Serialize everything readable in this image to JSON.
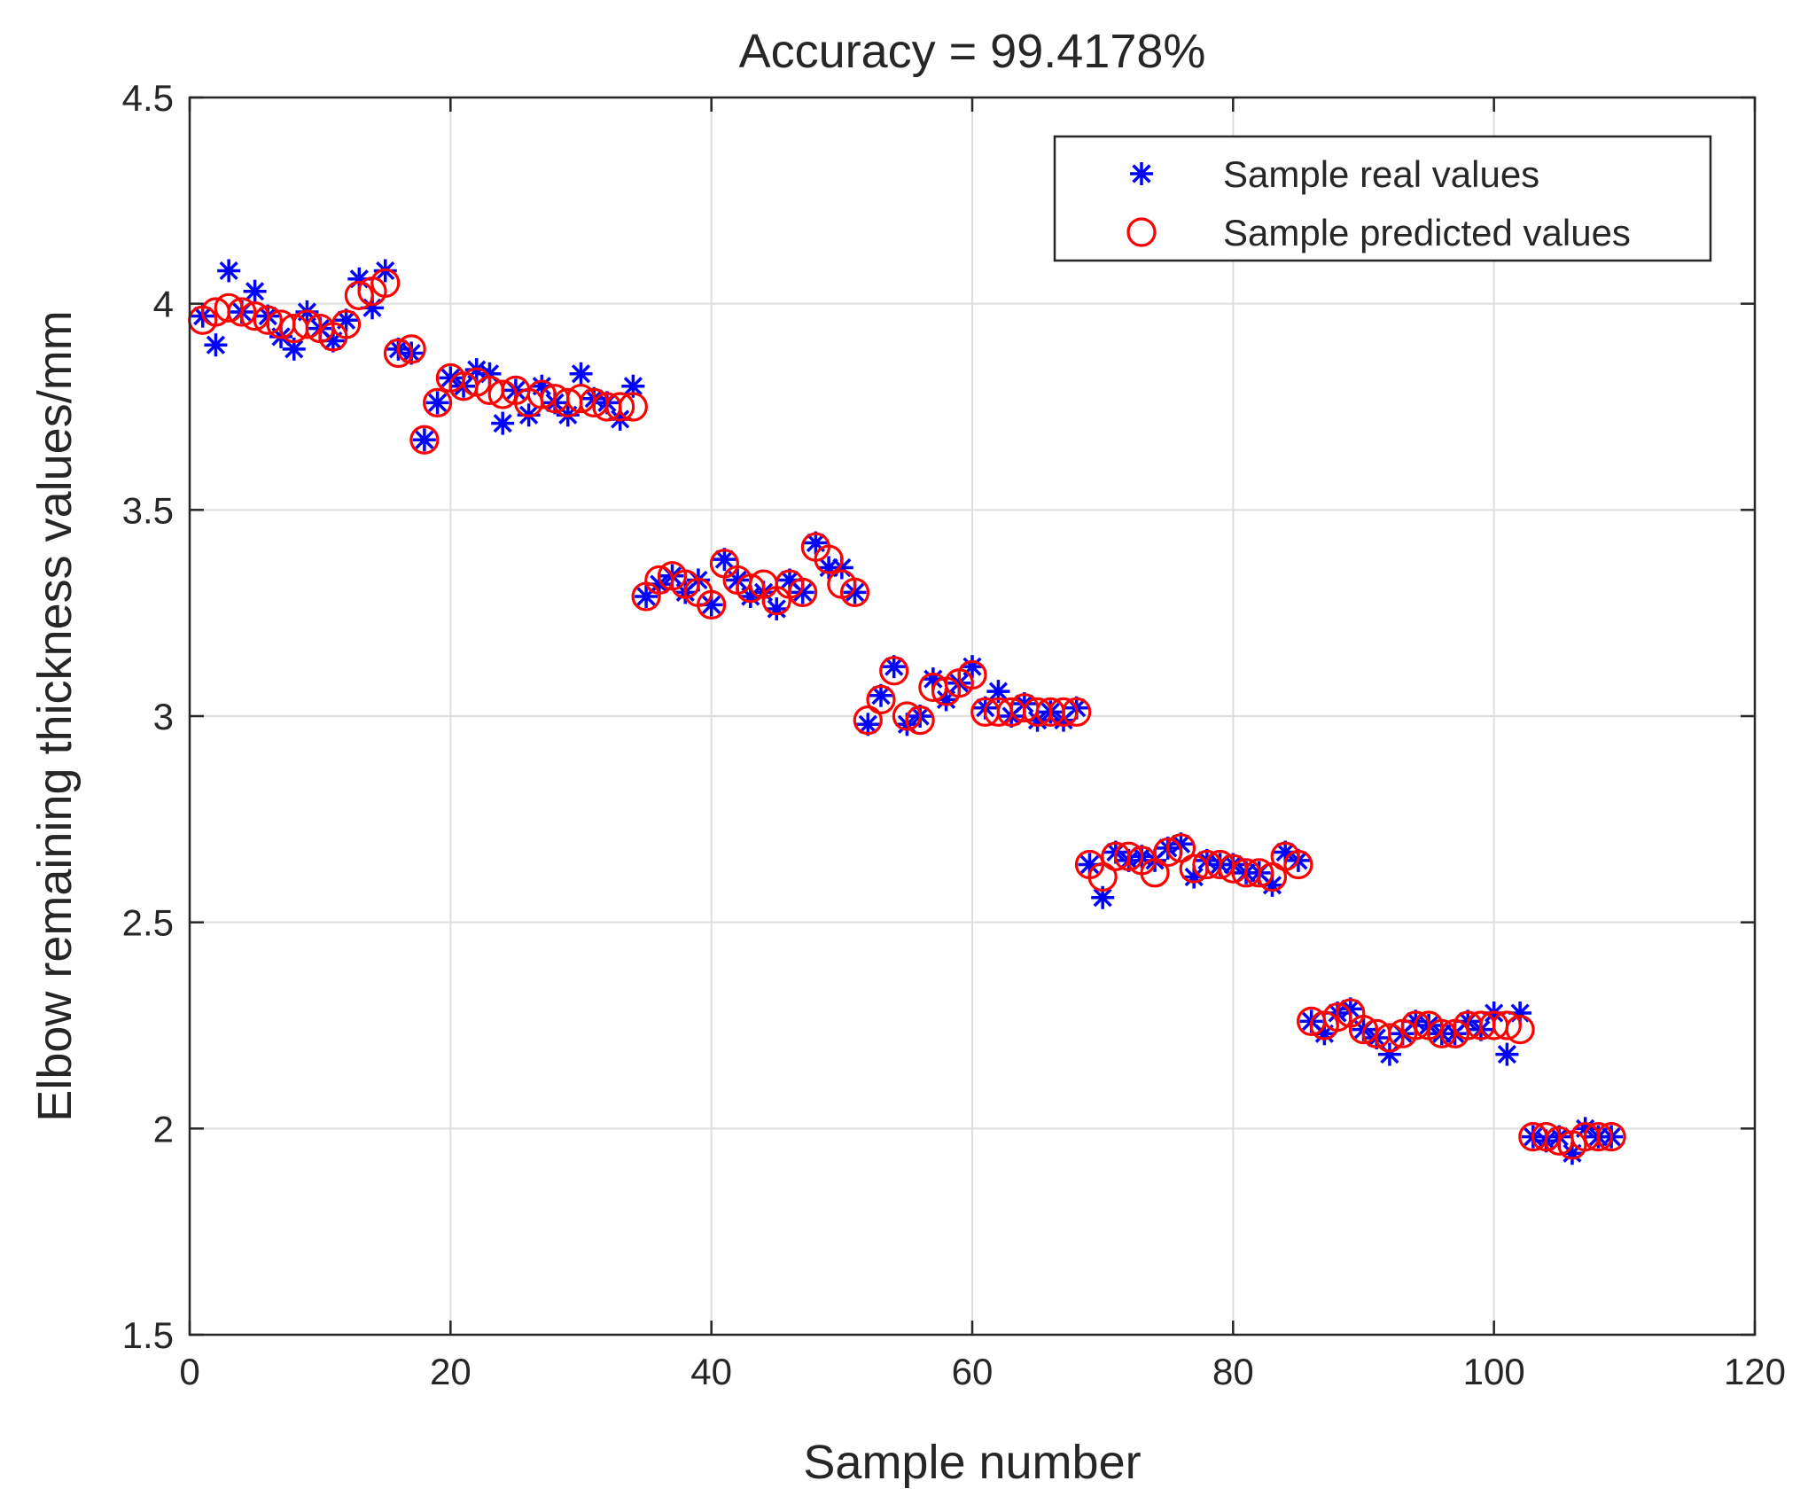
{
  "chart_data": {
    "type": "scatter",
    "title": "Accuracy = 99.4178%",
    "xlabel": "Sample number",
    "ylabel": "Elbow remaining thickness values/mm",
    "xlim": [
      0,
      120
    ],
    "ylim": [
      1.5,
      4.5
    ],
    "xticks": [
      "0",
      "20",
      "40",
      "60",
      "80",
      "100",
      "120"
    ],
    "yticks": [
      "1.5",
      "2",
      "2.5",
      "3",
      "3.5",
      "4",
      "4.5"
    ],
    "grid": true,
    "legend_position": "top-right",
    "series": [
      {
        "name": "Sample real values",
        "marker": "asterisk",
        "color": "#0000ff",
        "x": [
          1,
          2,
          3,
          4,
          5,
          6,
          7,
          8,
          9,
          10,
          11,
          12,
          13,
          14,
          15,
          16,
          17,
          18,
          19,
          20,
          21,
          22,
          23,
          24,
          25,
          26,
          27,
          28,
          29,
          30,
          31,
          32,
          33,
          34,
          35,
          36,
          37,
          38,
          39,
          40,
          41,
          42,
          43,
          44,
          45,
          46,
          47,
          48,
          49,
          50,
          51,
          52,
          53,
          54,
          55,
          56,
          57,
          58,
          59,
          60,
          61,
          62,
          63,
          64,
          65,
          66,
          67,
          68,
          69,
          70,
          71,
          72,
          73,
          74,
          75,
          76,
          77,
          78,
          79,
          80,
          81,
          82,
          83,
          84,
          85,
          86,
          87,
          88,
          89,
          90,
          91,
          92,
          93,
          94,
          95,
          96,
          97,
          98,
          99,
          100,
          101,
          102,
          103,
          104,
          105,
          106,
          107,
          108,
          109
        ],
        "y": [
          3.97,
          3.9,
          4.08,
          3.98,
          4.03,
          3.97,
          3.92,
          3.89,
          3.98,
          3.94,
          3.91,
          3.96,
          4.06,
          3.99,
          4.08,
          3.89,
          3.88,
          3.67,
          3.76,
          3.82,
          3.8,
          3.84,
          3.83,
          3.71,
          3.79,
          3.73,
          3.8,
          3.76,
          3.73,
          3.83,
          3.77,
          3.76,
          3.72,
          3.8,
          3.29,
          3.32,
          3.34,
          3.3,
          3.33,
          3.27,
          3.38,
          3.33,
          3.29,
          3.3,
          3.26,
          3.33,
          3.3,
          3.42,
          3.36,
          3.36,
          3.3,
          2.98,
          3.05,
          3.12,
          2.98,
          3.0,
          3.09,
          3.04,
          3.08,
          3.12,
          3.02,
          3.06,
          3.0,
          3.03,
          2.99,
          3.01,
          2.99,
          3.02,
          2.64,
          2.56,
          2.67,
          2.65,
          2.66,
          2.65,
          2.68,
          2.69,
          2.61,
          2.65,
          2.64,
          2.64,
          2.62,
          2.62,
          2.59,
          2.67,
          2.65,
          2.26,
          2.23,
          2.28,
          2.29,
          2.24,
          2.22,
          2.18,
          2.23,
          2.26,
          2.25,
          2.23,
          2.23,
          2.26,
          2.24,
          2.28,
          2.18,
          2.28,
          1.98,
          1.97,
          1.98,
          1.94,
          2.0,
          1.98,
          1.98
        ]
      },
      {
        "name": "Sample predicted values",
        "marker": "circle",
        "color": "#ff0000",
        "x": [
          1,
          2,
          3,
          4,
          5,
          6,
          7,
          8,
          9,
          10,
          11,
          12,
          13,
          14,
          15,
          16,
          17,
          18,
          19,
          20,
          21,
          22,
          23,
          24,
          25,
          26,
          27,
          28,
          29,
          30,
          31,
          32,
          33,
          34,
          35,
          36,
          37,
          38,
          39,
          40,
          41,
          42,
          43,
          44,
          45,
          46,
          47,
          48,
          49,
          50,
          51,
          52,
          53,
          54,
          55,
          56,
          57,
          58,
          59,
          60,
          61,
          62,
          63,
          64,
          65,
          66,
          67,
          68,
          69,
          70,
          71,
          72,
          73,
          74,
          75,
          76,
          77,
          78,
          79,
          80,
          81,
          82,
          83,
          84,
          85,
          86,
          87,
          88,
          89,
          90,
          91,
          92,
          93,
          94,
          95,
          96,
          97,
          98,
          99,
          100,
          101,
          102,
          103,
          104,
          105,
          106,
          107,
          108,
          109
        ],
        "y": [
          3.96,
          3.98,
          3.99,
          3.98,
          3.97,
          3.96,
          3.95,
          3.94,
          3.95,
          3.94,
          3.92,
          3.95,
          4.02,
          4.03,
          4.05,
          3.88,
          3.89,
          3.67,
          3.76,
          3.82,
          3.8,
          3.81,
          3.79,
          3.78,
          3.79,
          3.76,
          3.78,
          3.77,
          3.76,
          3.77,
          3.76,
          3.75,
          3.75,
          3.75,
          3.29,
          3.33,
          3.34,
          3.32,
          3.3,
          3.27,
          3.37,
          3.33,
          3.31,
          3.32,
          3.28,
          3.32,
          3.3,
          3.41,
          3.38,
          3.32,
          3.3,
          2.99,
          3.04,
          3.11,
          3.0,
          2.99,
          3.07,
          3.06,
          3.08,
          3.1,
          3.01,
          3.01,
          3.01,
          3.02,
          3.01,
          3.01,
          3.01,
          3.01,
          2.64,
          2.61,
          2.66,
          2.66,
          2.65,
          2.62,
          2.67,
          2.68,
          2.63,
          2.64,
          2.64,
          2.63,
          2.62,
          2.62,
          2.61,
          2.66,
          2.64,
          2.26,
          2.25,
          2.27,
          2.28,
          2.24,
          2.23,
          2.22,
          2.23,
          2.25,
          2.25,
          2.23,
          2.23,
          2.25,
          2.25,
          2.25,
          2.25,
          2.24,
          1.98,
          1.98,
          1.97,
          1.96,
          1.98,
          1.98,
          1.98
        ]
      }
    ]
  }
}
